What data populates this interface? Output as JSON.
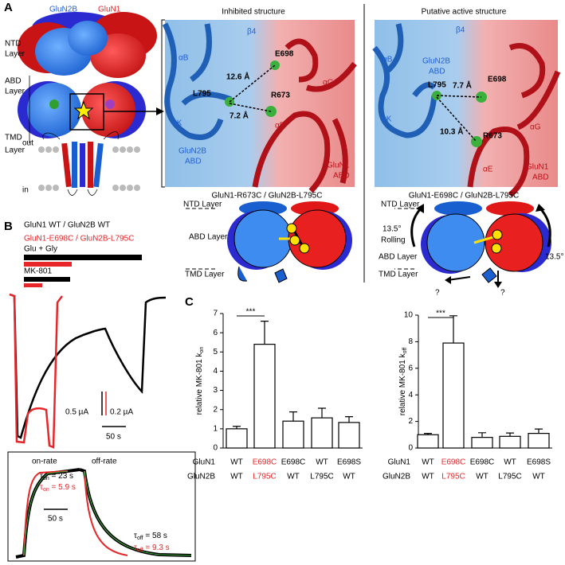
{
  "panel_labels": [
    "A",
    "B",
    "C"
  ],
  "panel_a": {
    "schematic": {
      "subunits": [
        "GluN2B",
        "GluN1"
      ],
      "layers": [
        [
          "NTD",
          "Layer"
        ],
        [
          "ABD",
          "Layer"
        ],
        [
          "TMD",
          "Layer"
        ]
      ],
      "membrane": [
        "out",
        "in"
      ]
    },
    "inhibited": {
      "title": "Inhibited structure",
      "labels": [
        "β4",
        "αB",
        "E698",
        "12.6 Å",
        "L795",
        "R673",
        "7.2 Å",
        "αG",
        "αK",
        "αE"
      ],
      "glun2b": [
        "GluN2B",
        "ABD"
      ],
      "glun1": [
        "GluN1",
        "ABD"
      ]
    },
    "active": {
      "title": "Putative active structure",
      "labels": [
        "β4",
        "αB",
        "L795",
        "7.7 Å",
        "E698",
        "αK",
        "10.3 Å",
        "R673",
        "αG",
        "αE"
      ],
      "glun2b": [
        "GluN2B",
        "ABD"
      ],
      "glun1": [
        "GluN1",
        "ABD"
      ]
    },
    "inhibited_model": {
      "title": "GluN1-R673C / GluN2B-L795C",
      "labels": [
        "NTD Layer",
        "ABD Layer",
        "TMD Layer"
      ]
    },
    "active_model": {
      "title": "GluN1-E698C / GluN2B-L795C",
      "labels": [
        "NTD Layer",
        "13.5°",
        "Rolling",
        "ABD Layer",
        "TMD Layer",
        "13.5°",
        "?",
        "?"
      ]
    }
  },
  "panel_b": {
    "legend": [
      "GluN1 WT / GluN2B WT",
      "GluN1-E698C / GluN2B-L795C"
    ],
    "applications": [
      "Glu + Gly",
      "MK-801"
    ],
    "scale": [
      "0.5 µA",
      "0.2 µA",
      "50 s"
    ],
    "inset": {
      "titles": [
        "on-rate",
        "off-rate"
      ],
      "scale": "50 s",
      "fits": [
        {
          "symbol": "τ",
          "sub": "on",
          "rest": " = 23 s"
        },
        {
          "symbol": "τ",
          "sub": "on",
          "rest": " = 5.9 s"
        },
        {
          "symbol": "τ",
          "sub": "off",
          "rest": " = 58 s"
        },
        {
          "symbol": "τ",
          "sub": "off",
          "rest": " = 9.3 s"
        }
      ]
    }
  },
  "chart_data": [
    {
      "type": "bar",
      "ylabel": "relative MK-801 k",
      "ylabel_sub": "on",
      "row_names": [
        "GluN1",
        "GluN2B"
      ],
      "categories": [
        [
          "WT",
          "WT"
        ],
        [
          "E698C",
          "L795C"
        ],
        [
          "E698C",
          "WT"
        ],
        [
          "WT",
          "L795C"
        ],
        [
          "E698S",
          "WT"
        ]
      ],
      "category_colors": [
        "#000000",
        "#e8262a",
        "#000000",
        "#000000",
        "#000000"
      ],
      "values": [
        1.0,
        5.4,
        1.4,
        1.57,
        1.33
      ],
      "errors": [
        0.13,
        1.2,
        0.48,
        0.5,
        0.3
      ],
      "color": "#ffffff",
      "ylim": [
        0,
        7
      ],
      "yticks": [
        0,
        1,
        2,
        3,
        4,
        5,
        6,
        7
      ],
      "significance": {
        "label": "***",
        "between": [
          0,
          1
        ]
      }
    },
    {
      "type": "bar",
      "ylabel": "relative MK-801 k",
      "ylabel_sub": "off",
      "row_names": [
        "GluN1",
        "GluN2B"
      ],
      "categories": [
        [
          "WT",
          "WT"
        ],
        [
          "E698C",
          "L795C"
        ],
        [
          "E698C",
          "WT"
        ],
        [
          "WT",
          "L795C"
        ],
        [
          "E698S",
          "WT"
        ]
      ],
      "category_colors": [
        "#000000",
        "#e8262a",
        "#000000",
        "#000000",
        "#000000"
      ],
      "values": [
        1.0,
        7.9,
        0.8,
        0.88,
        1.1
      ],
      "errors": [
        0.1,
        2.05,
        0.35,
        0.25,
        0.33
      ],
      "color": "#ffffff",
      "ylim": [
        0,
        10
      ],
      "yticks": [
        0,
        2,
        4,
        6,
        8,
        10
      ],
      "significance": {
        "label": "***",
        "between": [
          0,
          1
        ]
      }
    }
  ]
}
